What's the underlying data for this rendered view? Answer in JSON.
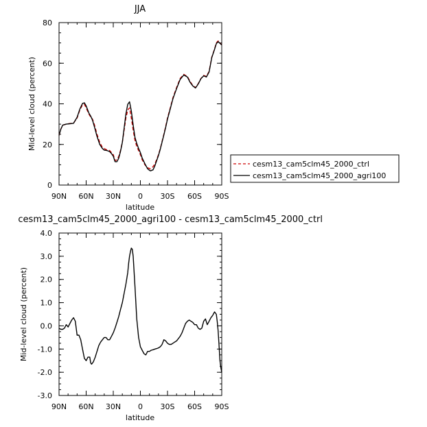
{
  "chart_data": [
    {
      "type": "line",
      "title": "JJA",
      "xlabel": "latitude",
      "ylabel": "Mid-level cloud (percent)",
      "xlim": [
        90,
        -90
      ],
      "ylim": [
        0,
        80
      ],
      "x_ticks": [
        90,
        60,
        30,
        0,
        -30,
        -60,
        -90
      ],
      "x_tick_labels": [
        "90N",
        "60N",
        "30N",
        "0",
        "30S",
        "60S",
        "90S"
      ],
      "y_ticks": [
        0,
        20,
        40,
        60,
        80
      ],
      "y_tick_labels": [
        "0",
        "20",
        "40",
        "60",
        "80"
      ],
      "legend": {
        "placement": "right",
        "entries": [
          "cesm13_cam5clm45_2000_ctrl",
          "cesm13_cam5clm45_2000_agri100"
        ]
      },
      "series": [
        {
          "name": "cesm13_cam5clm45_2000_ctrl",
          "color": "#cc0000",
          "dash": "dashed",
          "x": [
            90,
            88,
            86,
            82,
            78,
            74,
            70,
            67,
            64,
            62,
            60,
            57,
            55,
            53,
            51,
            48,
            45,
            42,
            40,
            37,
            34,
            32,
            30,
            28,
            26,
            24,
            22,
            20,
            18,
            16,
            14,
            12,
            10,
            8,
            6,
            4,
            2,
            0,
            -2,
            -5,
            -8,
            -11,
            -14,
            -16,
            -18,
            -20,
            -22,
            -24,
            -26,
            -28,
            -30,
            -33,
            -36,
            -40,
            -44,
            -48,
            -52,
            -55,
            -58,
            -61,
            -64,
            -67,
            -70,
            -73,
            -76,
            -79,
            -82,
            -84,
            -86,
            -88,
            -90
          ],
          "y": [
            24.5,
            27.5,
            29.5,
            30,
            30.3,
            30.5,
            33,
            37,
            39.5,
            39.8,
            38,
            35,
            33.5,
            32.5,
            30,
            25,
            21,
            18.5,
            18,
            17.3,
            17,
            16,
            15,
            12,
            12.5,
            14,
            17,
            21,
            27,
            33,
            37,
            38,
            33,
            27,
            22,
            19,
            17,
            15,
            12.5,
            10,
            8.5,
            8,
            9,
            10.5,
            12.5,
            15,
            18,
            21.5,
            25,
            29,
            33,
            38,
            43,
            48,
            52.5,
            54.5,
            53.5,
            51,
            49,
            48,
            50,
            52.5,
            54,
            53.5,
            56,
            63,
            67,
            70,
            71,
            70,
            69
          ]
        },
        {
          "name": "cesm13_cam5clm45_2000_agri100",
          "color": "#000000",
          "dash": "solid",
          "x": [
            90,
            88,
            86,
            82,
            78,
            74,
            70,
            67,
            64,
            62,
            60,
            57,
            55,
            53,
            51,
            48,
            45,
            42,
            40,
            37,
            34,
            32,
            30,
            28,
            26,
            24,
            22,
            20,
            18,
            16,
            14,
            12,
            10,
            8,
            6,
            4,
            2,
            0,
            -2,
            -5,
            -8,
            -11,
            -14,
            -16,
            -18,
            -20,
            -22,
            -24,
            -26,
            -28,
            -30,
            -33,
            -36,
            -40,
            -44,
            -48,
            -52,
            -55,
            -58,
            -61,
            -64,
            -67,
            -70,
            -73,
            -76,
            -79,
            -82,
            -84,
            -86,
            -88,
            -90
          ],
          "y": [
            24.5,
            27.5,
            29.5,
            30,
            30.2,
            30.4,
            33.4,
            37.4,
            40.2,
            40.5,
            39,
            35.5,
            34,
            32,
            29,
            24,
            20,
            18,
            17.2,
            17,
            16.5,
            15.5,
            14.2,
            11.5,
            11.5,
            13.2,
            16.5,
            21,
            28,
            35,
            39.8,
            41,
            36.5,
            29.5,
            23.5,
            20.5,
            18,
            16,
            13.3,
            10.5,
            8,
            7,
            7.5,
            9.5,
            12,
            14.5,
            17.7,
            21.2,
            24.7,
            28.5,
            32.5,
            37.5,
            42.5,
            47.5,
            52,
            54.2,
            53.2,
            50.6,
            48.8,
            47.8,
            49.8,
            52.4,
            53.8,
            53.2,
            55.7,
            62.8,
            66.8,
            69.6,
            70.6,
            69.8,
            69
          ]
        }
      ]
    },
    {
      "type": "line",
      "title": "cesm13_cam5clm45_2000_agri100 - cesm13_cam5clm45_2000_ctrl",
      "xlabel": "latitude",
      "ylabel": "Mid-level cloud (percent)",
      "xlim": [
        90,
        -90
      ],
      "ylim": [
        -3,
        4
      ],
      "x_ticks": [
        90,
        60,
        30,
        0,
        -30,
        -60,
        -90
      ],
      "x_tick_labels": [
        "90N",
        "60N",
        "30N",
        "0",
        "30S",
        "60S",
        "90S"
      ],
      "y_ticks": [
        -3,
        -2,
        -1,
        0,
        1,
        2,
        3,
        4
      ],
      "y_tick_labels": [
        "-3.0",
        "-2.0",
        "-1.0",
        "0.0",
        "1.0",
        "2.0",
        "3.0",
        "4.0"
      ],
      "series": [
        {
          "color": "#000000",
          "dash": "solid",
          "x": [
            90,
            88,
            86,
            84,
            82,
            80,
            78,
            76,
            74,
            72,
            70,
            68,
            66,
            64,
            62,
            60,
            58,
            56,
            55,
            54,
            52,
            50,
            48,
            46,
            44,
            42,
            40,
            38,
            36,
            34,
            32,
            30,
            28,
            26,
            24,
            22,
            20,
            18,
            16,
            14,
            13,
            12,
            11,
            10,
            9,
            8,
            6,
            4,
            2,
            0,
            -2,
            -4,
            -6,
            -8,
            -10,
            -12,
            -14,
            -16,
            -18,
            -20,
            -22,
            -24,
            -26,
            -28,
            -30,
            -32,
            -34,
            -36,
            -38,
            -40,
            -42,
            -44,
            -46,
            -48,
            -50,
            -52,
            -54,
            -56,
            -58,
            -60,
            -62,
            -64,
            -66,
            -68,
            -70,
            -72,
            -74,
            -76,
            -78,
            -80,
            -82,
            -84,
            -85,
            -86,
            -87,
            -88,
            -89,
            -90
          ],
          "y": [
            -0.1,
            -0.15,
            -0.15,
            -0.1,
            0.05,
            -0.05,
            0.1,
            0.25,
            0.35,
            0.2,
            -0.4,
            -0.4,
            -0.6,
            -1.0,
            -1.4,
            -1.5,
            -1.35,
            -1.35,
            -1.6,
            -1.65,
            -1.55,
            -1.35,
            -1.1,
            -0.85,
            -0.7,
            -0.6,
            -0.5,
            -0.5,
            -0.6,
            -0.6,
            -0.45,
            -0.3,
            -0.1,
            0.15,
            0.4,
            0.7,
            1.0,
            1.4,
            1.8,
            2.3,
            2.7,
            3.0,
            3.2,
            3.35,
            3.3,
            3.0,
            1.7,
            0.3,
            -0.5,
            -0.9,
            -1.05,
            -1.2,
            -1.25,
            -1.1,
            -1.1,
            -1.05,
            -1.03,
            -1.0,
            -0.98,
            -0.95,
            -0.9,
            -0.8,
            -0.6,
            -0.65,
            -0.75,
            -0.8,
            -0.8,
            -0.75,
            -0.7,
            -0.65,
            -0.55,
            -0.45,
            -0.3,
            -0.1,
            0.1,
            0.2,
            0.25,
            0.2,
            0.15,
            0.05,
            0.05,
            -0.1,
            -0.15,
            -0.1,
            0.2,
            0.3,
            0.05,
            0.2,
            0.35,
            0.45,
            0.6,
            0.5,
            0.2,
            -0.2,
            -0.8,
            -1.5,
            -1.8,
            -2.0
          ]
        }
      ]
    }
  ]
}
